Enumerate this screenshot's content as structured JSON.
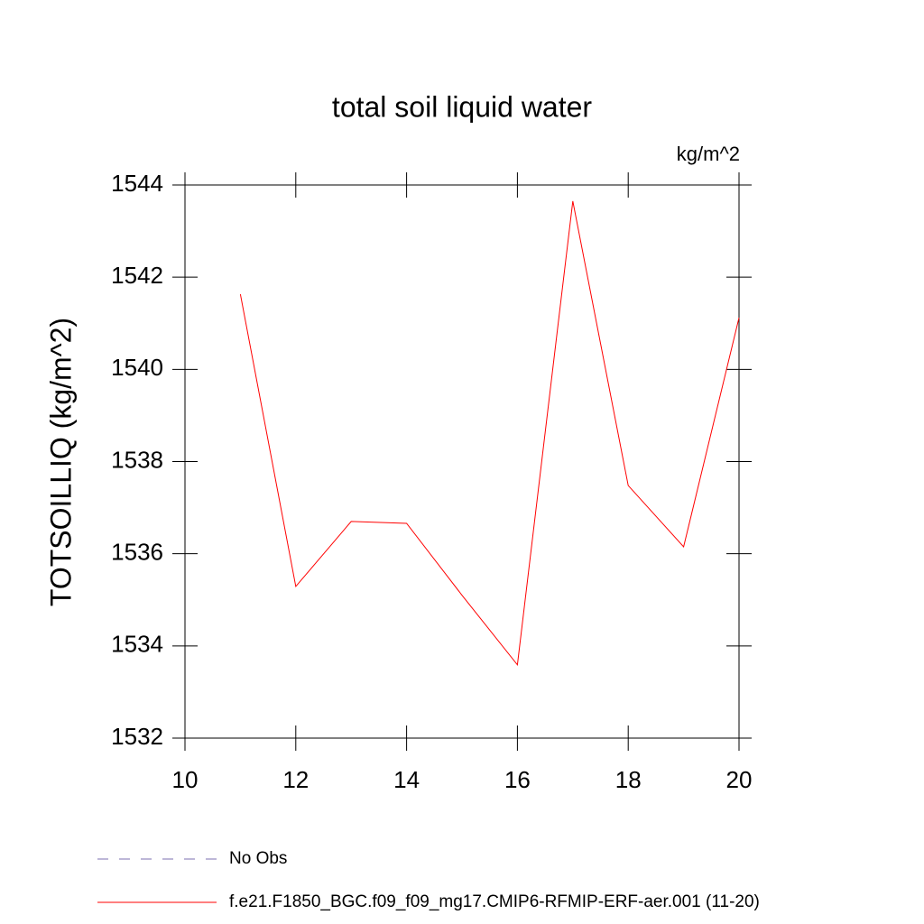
{
  "chart_data": {
    "type": "line",
    "title": "total soil liquid water",
    "units": "kg/m^2",
    "y_label": "TOTSOILLIQ  (kg/m^2)",
    "x": [
      11,
      12,
      13,
      14,
      15,
      16,
      17,
      18,
      19,
      20
    ],
    "series": [
      {
        "name": "No Obs",
        "color": "#7b6fb0",
        "dashed": true,
        "values": [
          null,
          null,
          null,
          null,
          null,
          null,
          null,
          null,
          null,
          null
        ]
      },
      {
        "name": "f.e21.F1850_BGC.f09_f09_mg17.CMIP6-RFMIP-ERF-aer.001 (11-20)",
        "color": "#ff0000",
        "dashed": false,
        "values": [
          1541.63,
          1535.29,
          1536.7,
          1536.66,
          1535.1,
          1533.59,
          1543.65,
          1537.48,
          1536.15,
          1541.12
        ]
      }
    ],
    "xlim": [
      10,
      20
    ],
    "xticks": [
      10,
      12,
      14,
      16,
      18,
      20
    ],
    "ylim": [
      1532,
      1544
    ],
    "yticks": [
      1532,
      1534,
      1536,
      1538,
      1540,
      1542,
      1544
    ],
    "grid": false
  }
}
